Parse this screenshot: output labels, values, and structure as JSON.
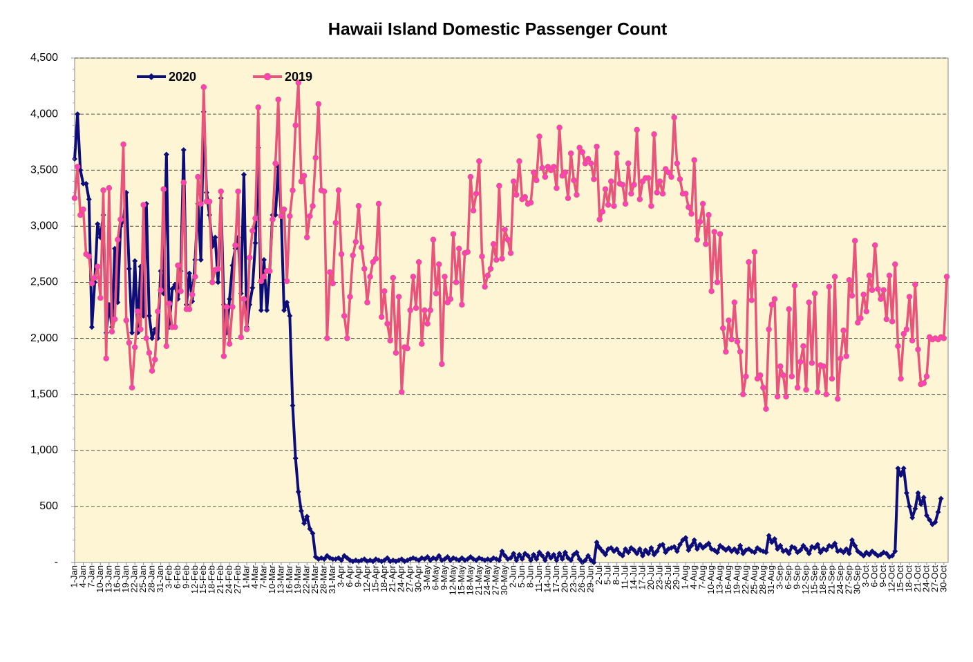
{
  "chart_data": {
    "type": "line",
    "title": "Hawaii Island Domestic Passenger Count",
    "legend": "upper left",
    "grid": true,
    "ylim": [
      0,
      4500
    ],
    "yticks": [
      {
        "value": 0,
        "label": "-"
      },
      500,
      {
        "value": 1000,
        "label": "1,000"
      },
      {
        "value": 1500,
        "label": "1,500"
      },
      {
        "value": 2000,
        "label": "2,000"
      },
      {
        "value": 2500,
        "label": "2,500"
      },
      {
        "value": 3000,
        "label": "3,000"
      },
      {
        "value": 3500,
        "label": "3,500"
      },
      {
        "value": 4000,
        "label": "4,000"
      },
      {
        "value": 4500,
        "label": "4,500"
      }
    ],
    "categories": [
      "1-Jan",
      null,
      null,
      "4-Jan",
      null,
      null,
      "7-Jan",
      null,
      null,
      "10-Jan",
      null,
      null,
      "13-Jan",
      null,
      null,
      "16-Jan",
      null,
      null,
      "19-Jan",
      null,
      null,
      "22-Jan",
      null,
      null,
      "25-Jan",
      null,
      null,
      "28-Jan",
      null,
      null,
      "31-Jan",
      null,
      null,
      "3-Feb",
      null,
      null,
      "6-Feb",
      null,
      null,
      "9-Feb",
      null,
      null,
      "12-Feb",
      null,
      null,
      "15-Feb",
      null,
      null,
      "18-Feb",
      null,
      null,
      "21-Feb",
      null,
      null,
      "24-Feb",
      null,
      null,
      "27-Feb",
      null,
      null,
      "1-Mar",
      null,
      null,
      "4-Mar",
      null,
      null,
      "7-Mar",
      null,
      null,
      "10-Mar",
      null,
      null,
      "13-Mar",
      null,
      null,
      "16-Mar",
      null,
      null,
      "19-Mar",
      null,
      null,
      "22-Mar",
      null,
      null,
      "25-Mar",
      null,
      null,
      "28-Mar",
      null,
      null,
      "31-Mar",
      null,
      null,
      "3-Apr",
      null,
      null,
      "6-Apr",
      null,
      null,
      "9-Apr",
      null,
      null,
      "12-Apr",
      null,
      null,
      "15-Apr",
      null,
      null,
      "18-Apr",
      null,
      null,
      "21-Apr",
      null,
      null,
      "24-Apr",
      null,
      null,
      "27-Apr",
      null,
      null,
      "30-Apr",
      null,
      null,
      "3-May",
      null,
      null,
      "6-May",
      null,
      null,
      "9-May",
      null,
      null,
      "12-May",
      null,
      null,
      "15-May",
      null,
      null,
      "18-May",
      null,
      null,
      "21-May",
      null,
      null,
      "24-May",
      null,
      null,
      "27-May",
      null,
      null,
      "30-May",
      null,
      null,
      "2-Jun",
      null,
      null,
      "5-Jun",
      null,
      null,
      "8-Jun",
      null,
      null,
      "11-Jun",
      null,
      null,
      "14-Jun",
      null,
      null,
      "17-Jun",
      null,
      null,
      "20-Jun",
      null,
      null,
      "23-Jun",
      null,
      null,
      "26-Jun",
      null,
      null,
      "29-Jun",
      null,
      null,
      "2-Jul",
      null,
      null,
      "5-Jul",
      null,
      null,
      "8-Jul",
      null,
      null,
      "11-Jul",
      null,
      null,
      "14-Jul",
      null,
      null,
      "17-Jul",
      null,
      null,
      "20-Jul",
      null,
      null,
      "23-Jul",
      null,
      null,
      "26-Jul",
      null,
      null,
      "29-Jul",
      null,
      null,
      "1-Aug",
      null,
      null,
      "4-Aug",
      null,
      null,
      "7-Aug",
      null,
      null,
      "10-Aug",
      null,
      null,
      "13-Aug",
      null,
      null,
      "16-Aug",
      null,
      null,
      "19-Aug",
      null,
      null,
      "22-Aug",
      null,
      null,
      "25-Aug",
      null,
      null,
      "28-Aug",
      null,
      null,
      "31-Aug",
      null,
      null,
      "3-Sep",
      null,
      null,
      "6-Sep",
      null,
      null,
      "9-Sep",
      null,
      null,
      "12-Sep",
      null,
      null,
      "15-Sep",
      null,
      null,
      "18-Sep",
      null,
      null,
      "21-Sep",
      null,
      null,
      "24-Sep",
      null,
      null,
      "27-Sep",
      null,
      null,
      "30-Sep",
      null,
      null,
      "3-Oct",
      null,
      null,
      "6-Oct",
      null,
      null,
      "9-Oct",
      null,
      null,
      "12-Oct",
      null,
      null,
      "15-Oct",
      null,
      null,
      "18-Oct",
      null,
      null,
      "21-Oct",
      null,
      null,
      "24-Oct",
      null,
      null,
      "27-Oct",
      null,
      null,
      "30-Oct",
      null
    ],
    "series": [
      {
        "name": "2020",
        "color": "#0d0d7a",
        "marker": "diamond",
        "values": [
          3600,
          4000,
          3500,
          3380,
          3380,
          3240,
          2100,
          2500,
          3020,
          2900,
          3100,
          2050,
          2300,
          2100,
          2800,
          2320,
          3000,
          3050,
          3300,
          2620,
          2050,
          2690,
          2050,
          2640,
          2200,
          3200,
          2200,
          2000,
          2080,
          2000,
          2600,
          2400,
          3640,
          2100,
          2440,
          2480,
          2350,
          2600,
          3680,
          2300,
          2580,
          2330,
          2700,
          3200,
          2700,
          4020,
          3300,
          3100,
          2820,
          2900,
          2500,
          3250,
          2300,
          2050,
          2350,
          2650,
          2800,
          2900,
          2400,
          3460,
          2100,
          2300,
          2450,
          2850,
          3700,
          2250,
          2700,
          2250,
          2600,
          3100,
          3100,
          3530,
          3100,
          2250,
          2320,
          2200,
          1400,
          930,
          630,
          460,
          350,
          410,
          300,
          260,
          50,
          30,
          40,
          30,
          60,
          40,
          30,
          30,
          40,
          20,
          60,
          40,
          20,
          10,
          20,
          10,
          20,
          30,
          10,
          20,
          10,
          30,
          20,
          10,
          20,
          40,
          10,
          20,
          10,
          20,
          30,
          10,
          20,
          30,
          40,
          30,
          20,
          40,
          30,
          50,
          20,
          40,
          30,
          60,
          20,
          30,
          50,
          20,
          40,
          30,
          20,
          40,
          20,
          30,
          50,
          30,
          20,
          40,
          30,
          20,
          30,
          20,
          40,
          30,
          20,
          100,
          60,
          30,
          40,
          80,
          20,
          70,
          30,
          80,
          60,
          20,
          70,
          30,
          90,
          60,
          20,
          80,
          40,
          70,
          20,
          80,
          30,
          90,
          40,
          20,
          70,
          90,
          30,
          0,
          20,
          60,
          20,
          0,
          180,
          130,
          100,
          70,
          120,
          130,
          100,
          120,
          80,
          60,
          120,
          90,
          130,
          110,
          80,
          120,
          60,
          110,
          80,
          130,
          70,
          100,
          150,
          160,
          90,
          120,
          130,
          140,
          100,
          160,
          200,
          220,
          110,
          150,
          200,
          120,
          160,
          130,
          150,
          170,
          120,
          110,
          90,
          150,
          130,
          110,
          130,
          100,
          120,
          90,
          150,
          80,
          110,
          120,
          100,
          90,
          130,
          110,
          100,
          90,
          240,
          180,
          210,
          120,
          150,
          100,
          110,
          80,
          140,
          130,
          90,
          110,
          150,
          120,
          80,
          140,
          130,
          160,
          90,
          120,
          110,
          150,
          140,
          170,
          100,
          110,
          90,
          120,
          80,
          200,
          150,
          100,
          80,
          60,
          90,
          70,
          100,
          80,
          60,
          70,
          90,
          80,
          50,
          60,
          100,
          840,
          780,
          840,
          620,
          500,
          400,
          480,
          620,
          520,
          580,
          420,
          380,
          340,
          360,
          450,
          570,
          null,
          null
        ]
      },
      {
        "name": "2019",
        "color": "#e8547a",
        "marker": "circle",
        "marker_color": "#ff3fc8",
        "values": [
          3250,
          3530,
          3100,
          3150,
          2750,
          2730,
          2490,
          2540,
          2640,
          2360,
          3320,
          1820,
          3340,
          2060,
          2170,
          2880,
          3060,
          3730,
          2160,
          1960,
          1560,
          1920,
          2240,
          2080,
          3190,
          2000,
          1870,
          1710,
          1810,
          2240,
          2430,
          3330,
          1930,
          2310,
          2100,
          2100,
          2650,
          2420,
          3390,
          2260,
          2260,
          2390,
          2550,
          3440,
          3200,
          4240,
          3220,
          3220,
          2500,
          2610,
          2620,
          3310,
          1840,
          2280,
          1950,
          2280,
          2830,
          3310,
          2010,
          2350,
          2080,
          2720,
          2960,
          3070,
          4060,
          2510,
          2550,
          2600,
          2600,
          3060,
          3560,
          4130,
          3090,
          3150,
          2510,
          3090,
          3320,
          3900,
          4280,
          3400,
          3450,
          2900,
          3090,
          3180,
          3610,
          4090,
          3320,
          3310,
          2000,
          2590,
          2490,
          3030,
          3320,
          2750,
          2200,
          2000,
          2370,
          2740,
          2860,
          3180,
          2810,
          2620,
          2320,
          2550,
          2680,
          2710,
          3200,
          2190,
          2420,
          2130,
          1980,
          2540,
          1870,
          2370,
          1520,
          1920,
          1910,
          2250,
          2550,
          2270,
          2680,
          1950,
          2250,
          2130,
          2250,
          2880,
          2400,
          2660,
          1770,
          2550,
          2320,
          2350,
          2930,
          2500,
          2800,
          2300,
          2760,
          2770,
          3440,
          3140,
          3290,
          3580,
          2730,
          2460,
          2560,
          2620,
          2840,
          2700,
          3360,
          2710,
          2970,
          2880,
          2760,
          3400,
          3280,
          3580,
          3240,
          3260,
          3200,
          3210,
          3480,
          3410,
          3800,
          3520,
          3440,
          3530,
          3500,
          3530,
          3340,
          3880,
          3450,
          3480,
          3250,
          3650,
          3410,
          3280,
          3700,
          3660,
          3560,
          3600,
          3560,
          3420,
          3710,
          3060,
          3130,
          3330,
          3190,
          3400,
          3180,
          3650,
          3380,
          3370,
          3200,
          3560,
          3290,
          3370,
          3860,
          3240,
          3400,
          3430,
          3430,
          3180,
          3820,
          3300,
          3400,
          3290,
          3510,
          3480,
          3440,
          3970,
          3560,
          3420,
          3290,
          3290,
          3170,
          3110,
          3590,
          2880,
          3040,
          3200,
          2840,
          3100,
          2420,
          2950,
          2500,
          2930,
          2090,
          1880,
          2160,
          1990,
          2320,
          1970,
          1880,
          1500,
          1660,
          2680,
          2340,
          2770,
          1640,
          1670,
          1560,
          1370,
          2080,
          2300,
          2350,
          1480,
          1750,
          1670,
          1480,
          2260,
          1660,
          2470,
          1560,
          1790,
          1930,
          1540,
          2320,
          1780,
          2400,
          1520,
          1760,
          1750,
          1500,
          2460,
          1640,
          2550,
          1460,
          1820,
          2070,
          1840,
          2520,
          2380,
          2870,
          2140,
          2180,
          2390,
          2240,
          2560,
          2430,
          2830,
          2440,
          2350,
          2430,
          2170,
          2560,
          2150,
          2660,
          1930,
          1640,
          2040,
          2080,
          2370,
          1980,
          2480,
          1900,
          1590,
          1600,
          1660,
          2010,
          1990,
          2000,
          1990,
          2010,
          2000,
          2550
        ]
      }
    ]
  }
}
